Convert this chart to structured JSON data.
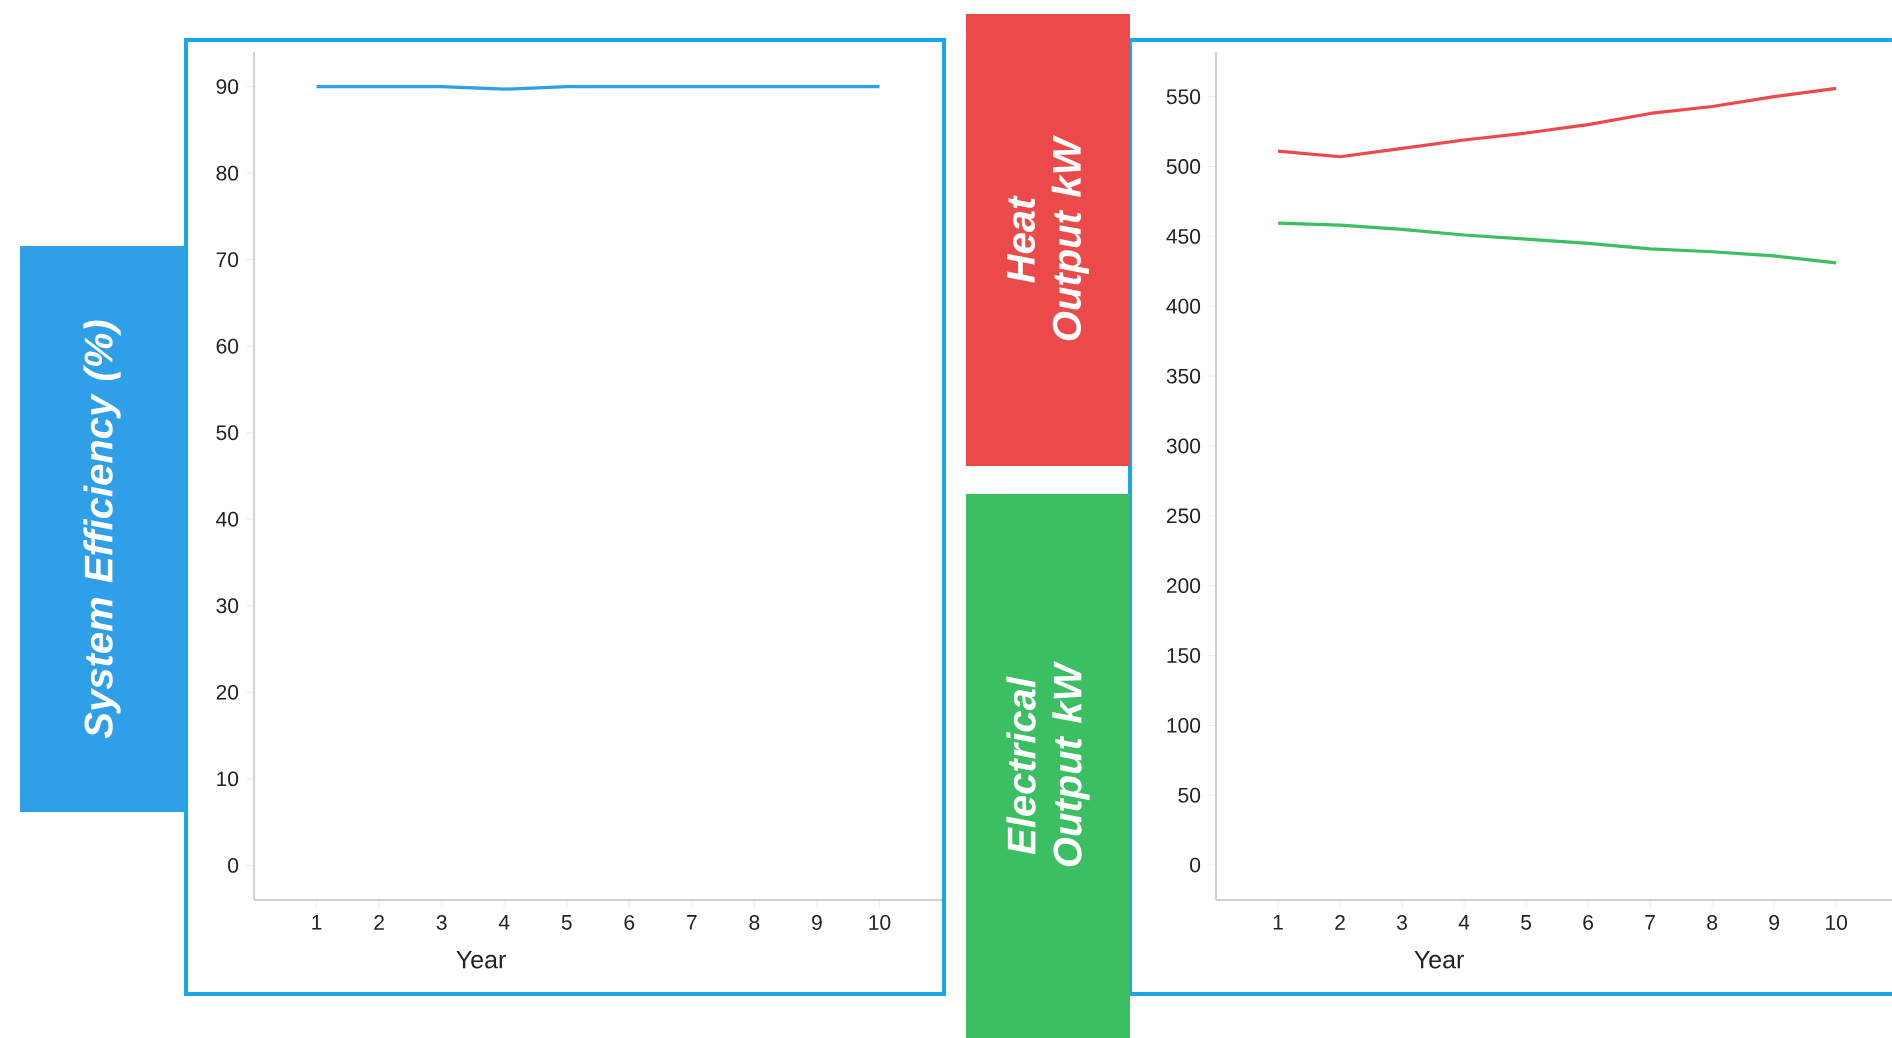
{
  "chart_data": [
    {
      "type": "line",
      "ylabel": "System Efficiency (%)",
      "xlabel": "Year",
      "x": [
        1,
        2,
        3,
        4,
        5,
        6,
        7,
        8,
        9,
        10
      ],
      "xlim": [
        0,
        11
      ],
      "xticks": [
        1,
        2,
        3,
        4,
        5,
        6,
        7,
        8,
        9,
        10
      ],
      "ylim": [
        -4,
        94
      ],
      "yticks": [
        0,
        10,
        20,
        30,
        40,
        50,
        60,
        70,
        80,
        90
      ],
      "grid": false,
      "marker": "none",
      "line_style": "solid",
      "series": [
        {
          "color": "#2f9fe8",
          "values": [
            90,
            90,
            90,
            89.7,
            90,
            90,
            90,
            90,
            90,
            90
          ]
        }
      ]
    },
    {
      "type": "line",
      "xlabel": "Year",
      "x": [
        1,
        2,
        3,
        4,
        5,
        6,
        7,
        8,
        9,
        10
      ],
      "xlim": [
        0,
        10.9
      ],
      "xticks": [
        1,
        2,
        3,
        4,
        5,
        6,
        7,
        8,
        9,
        10
      ],
      "ylim": [
        -25,
        582
      ],
      "yticks": [
        0,
        50,
        100,
        150,
        200,
        250,
        300,
        350,
        400,
        450,
        500,
        550
      ],
      "grid": false,
      "marker": "none",
      "line_style": "solid",
      "annotations": [
        "Heat Output kW",
        "Electrical Output kW"
      ],
      "series": [
        {
          "color": "#ec4a4a",
          "values": [
            511,
            507,
            513,
            519,
            524,
            530,
            538,
            543,
            550,
            556
          ]
        },
        {
          "color": "#3cbf62",
          "values": [
            459.5,
            458,
            455,
            451,
            448,
            445,
            441,
            439,
            436,
            431
          ]
        }
      ]
    }
  ]
}
